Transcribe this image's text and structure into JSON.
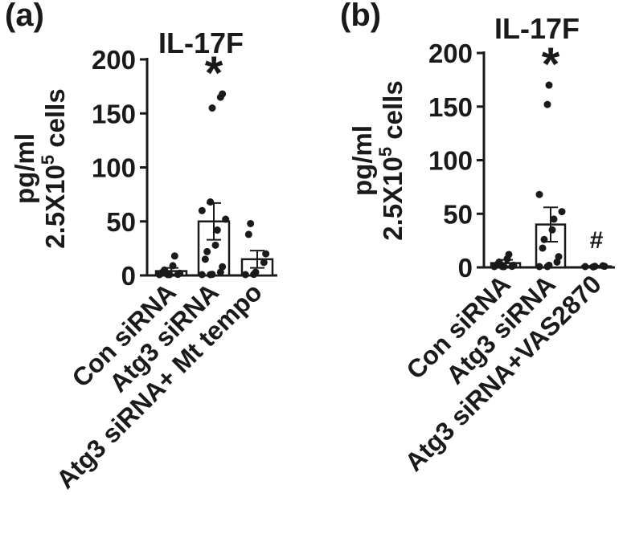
{
  "chart_data": [
    {
      "type": "bar",
      "panel": "(a)",
      "title": "IL-17F",
      "ylabel_line1": "pg/ml",
      "ylabel_line2_prefix": "2.5X10",
      "ylabel_line2_sup": "5",
      "ylabel_line2_suffix": " cells",
      "ylim": [
        0,
        200
      ],
      "yticks": [
        0,
        50,
        100,
        150,
        200
      ],
      "categories": [
        "Con siRNA",
        "Atg3 siRNA",
        "Atg3 siRNA+ Mt tempo"
      ],
      "values": [
        4,
        50,
        15
      ],
      "errors": [
        3,
        17,
        8
      ],
      "points": [
        [
          0,
          0,
          0,
          1,
          2,
          3,
          5,
          9,
          18
        ],
        [
          0,
          0,
          1,
          3,
          8,
          15,
          22,
          28,
          42,
          52,
          60,
          68,
          155,
          165,
          168
        ],
        [
          0,
          1,
          3,
          12,
          20,
          38,
          48
        ]
      ],
      "annotations": [
        {
          "category": 1,
          "text": "*"
        }
      ]
    },
    {
      "type": "bar",
      "panel": "(b)",
      "title": "IL-17F",
      "ylabel_line1": "pg/ml",
      "ylabel_line2_prefix": "2.5X10",
      "ylabel_line2_sup": "5",
      "ylabel_line2_suffix": " cells",
      "ylim": [
        0,
        200
      ],
      "yticks": [
        0,
        50,
        100,
        150,
        200
      ],
      "categories": [
        "Con siRNA",
        "Atg3 siRNA",
        "Atg3 siRNA+VAS2870"
      ],
      "values": [
        4,
        40,
        1
      ],
      "errors": [
        3,
        16,
        0.5
      ],
      "points": [
        [
          0,
          0,
          0,
          1,
          2,
          3,
          5,
          8,
          12
        ],
        [
          0,
          0,
          2,
          5,
          10,
          18,
          26,
          35,
          45,
          52,
          68,
          152,
          170
        ],
        [
          0,
          0.5,
          1,
          1.5,
          1
        ]
      ],
      "annotations": [
        {
          "category": 1,
          "text": "*"
        },
        {
          "category": 2,
          "text": "#"
        }
      ]
    }
  ]
}
